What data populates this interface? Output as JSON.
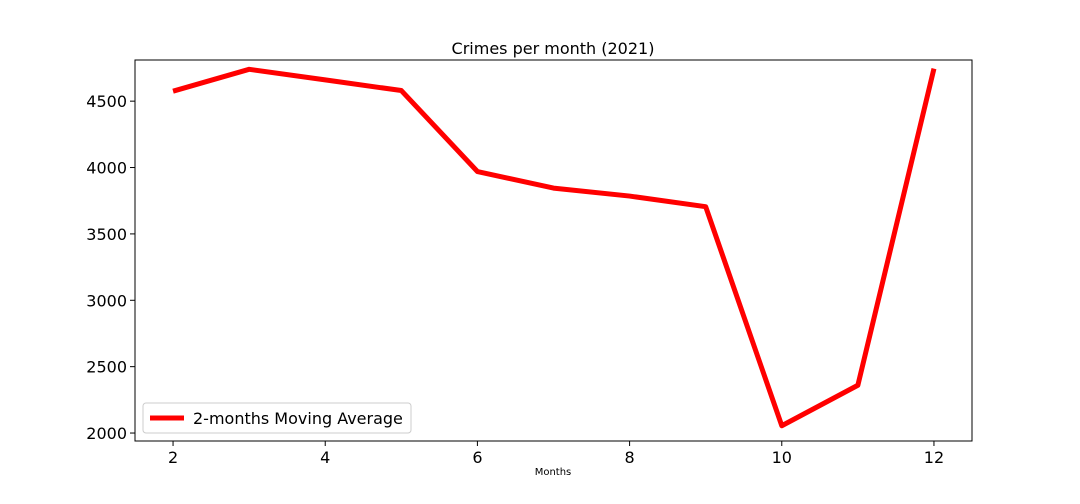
{
  "chart_data": {
    "type": "line",
    "title": "Crimes per month (2021)",
    "xlabel": "Months",
    "ylabel": "",
    "xlim": [
      1.5,
      12.5
    ],
    "ylim": [
      1940,
      4810
    ],
    "xticks": [
      2,
      4,
      6,
      8,
      10,
      12
    ],
    "yticks": [
      2000,
      2500,
      3000,
      3500,
      4000,
      4500
    ],
    "grid": false,
    "legend_position": "lower-left",
    "series": [
      {
        "name": "2-months Moving Average",
        "color": "#ff0000",
        "x": [
          2,
          3,
          4,
          5,
          6,
          7,
          8,
          9,
          10,
          11,
          12
        ],
        "values": [
          4575,
          4740,
          4660,
          4580,
          3970,
          3845,
          3785,
          3705,
          2055,
          2360,
          4745
        ]
      }
    ]
  }
}
